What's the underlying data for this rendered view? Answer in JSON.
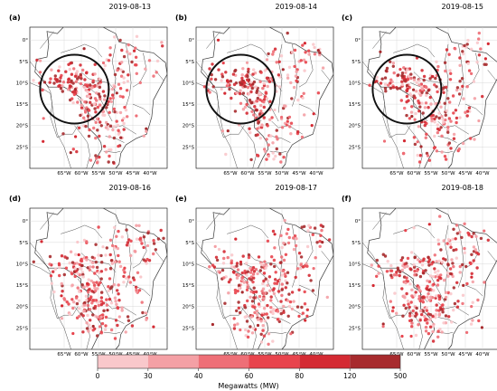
{
  "panels": [
    {
      "letter": "(a)",
      "date": "2019-08-13",
      "circle": true,
      "seed": 11,
      "region": "amazon"
    },
    {
      "letter": "(b)",
      "date": "2019-08-14",
      "circle": true,
      "seed": 23,
      "region": "amazon"
    },
    {
      "letter": "(c)",
      "date": "2019-08-15",
      "circle": true,
      "seed": 37,
      "region": "amazon"
    },
    {
      "letter": "(d)",
      "date": "2019-08-16",
      "circle": false,
      "seed": 41,
      "region": "central"
    },
    {
      "letter": "(e)",
      "date": "2019-08-17",
      "circle": false,
      "seed": 53,
      "region": "central"
    },
    {
      "letter": "(f)",
      "date": "2019-08-18",
      "circle": false,
      "seed": 67,
      "region": "central"
    }
  ],
  "lat_ticks": [
    "0°",
    "5°S",
    "10°S",
    "15°S",
    "20°S",
    "25°S"
  ],
  "lon_ticks": [
    "65°W",
    "60°W",
    "55°W",
    "50°W",
    "45°W",
    "40°W"
  ],
  "colorbar": {
    "ticks": [
      "0",
      "30",
      "40",
      "60",
      "80",
      "120",
      "500"
    ],
    "colors": [
      "#f9c8cb",
      "#f4a0a5",
      "#ee6f77",
      "#e8444d",
      "#d42a33",
      "#a72b2e"
    ],
    "label": "Megawatts (MW)"
  },
  "colors": {
    "circle": "#111111",
    "border": "#3a3a3a",
    "grid": "#d0d0d0"
  }
}
